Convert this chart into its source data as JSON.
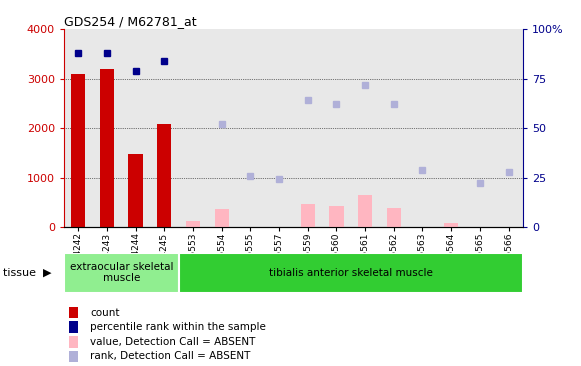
{
  "title": "GDS254 / M62781_at",
  "samples": [
    "GSM4242",
    "GSM4243",
    "GSM4244",
    "GSM4245",
    "GSM5553",
    "GSM5554",
    "GSM5555",
    "GSM5557",
    "GSM5559",
    "GSM5560",
    "GSM5561",
    "GSM5562",
    "GSM5563",
    "GSM5564",
    "GSM5565",
    "GSM5566"
  ],
  "count_values": [
    3100,
    3200,
    1470,
    2080,
    null,
    null,
    null,
    null,
    null,
    null,
    null,
    null,
    null,
    null,
    null,
    null
  ],
  "percentile_rank_present": [
    88,
    88,
    79,
    84,
    null,
    null,
    null,
    null,
    null,
    null,
    null,
    null,
    null,
    null,
    null,
    null
  ],
  "value_absent": [
    null,
    null,
    null,
    null,
    120,
    370,
    null,
    null,
    460,
    420,
    640,
    390,
    null,
    80,
    null,
    null
  ],
  "rank_absent": [
    null,
    null,
    null,
    null,
    null,
    52,
    26,
    24,
    64,
    62,
    72,
    62,
    29,
    null,
    22,
    28
  ],
  "ylim_left": [
    0,
    4000
  ],
  "ylim_right": [
    0,
    100
  ],
  "yticks_left": [
    0,
    1000,
    2000,
    3000,
    4000
  ],
  "yticks_right": [
    0,
    25,
    50,
    75,
    100
  ],
  "tissue_groups": [
    {
      "label": "extraocular skeletal\nmuscle",
      "start": 0,
      "end": 4,
      "color": "#90ee90"
    },
    {
      "label": "tibialis anterior skeletal muscle",
      "start": 4,
      "end": 16,
      "color": "#32cd32"
    }
  ],
  "legend_items": [
    {
      "label": "count",
      "color": "#cc0000"
    },
    {
      "label": "percentile rank within the sample",
      "color": "#00008b"
    },
    {
      "label": "value, Detection Call = ABSENT",
      "color": "#ffb6c1"
    },
    {
      "label": "rank, Detection Call = ABSENT",
      "color": "#b0b0d8"
    }
  ],
  "count_color": "#cc0000",
  "absent_value_color": "#ffb6c1",
  "rank_present_color": "#00008b",
  "rank_absent_color": "#b0b0d8",
  "background_color": "#ffffff",
  "plot_bg_color": "#e8e8e8",
  "grid_color": "#000000"
}
